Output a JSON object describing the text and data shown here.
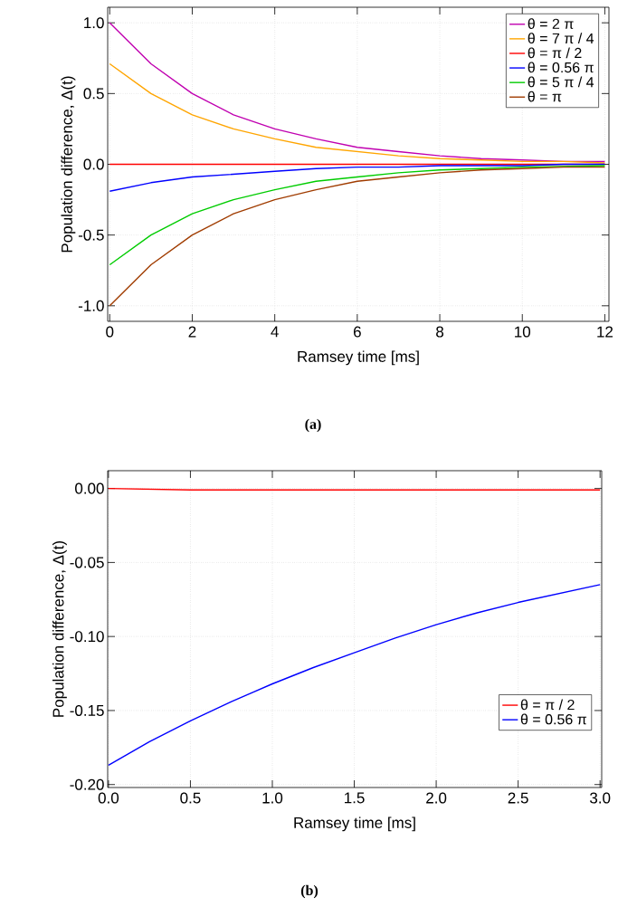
{
  "chart_data": [
    {
      "type": "line",
      "xlabel": "Ramsey time  [ms]",
      "ylabel": "Population difference, Δ(t)",
      "annotations": [
        "(a)"
      ],
      "x": [
        0,
        1,
        2,
        3,
        4,
        5,
        6,
        7,
        8,
        9,
        10,
        11,
        12
      ],
      "series": [
        {
          "name": "θ = 2 π",
          "color": "#c000b0",
          "values": [
            1.0,
            0.71,
            0.5,
            0.35,
            0.25,
            0.18,
            0.12,
            0.09,
            0.06,
            0.04,
            0.03,
            0.02,
            0.02
          ]
        },
        {
          "name": "θ = 7 π / 4",
          "color": "#ffa500",
          "values": [
            0.71,
            0.5,
            0.35,
            0.25,
            0.18,
            0.12,
            0.09,
            0.06,
            0.04,
            0.03,
            0.02,
            0.02,
            0.01
          ]
        },
        {
          "name": "θ = π / 2",
          "color": "#ff0000",
          "values": [
            0,
            0,
            0,
            0,
            0,
            0,
            0,
            0,
            0,
            0,
            0,
            0,
            0
          ]
        },
        {
          "name": "θ = 0.56 π",
          "color": "#0000ff",
          "values": [
            -0.19,
            -0.13,
            -0.09,
            -0.07,
            -0.05,
            -0.03,
            -0.02,
            -0.02,
            -0.01,
            -0.01,
            -0.01,
            0,
            0
          ]
        },
        {
          "name": "θ = 5 π / 4",
          "color": "#00cc00",
          "values": [
            -0.71,
            -0.5,
            -0.35,
            -0.25,
            -0.18,
            -0.12,
            -0.09,
            -0.06,
            -0.04,
            -0.03,
            -0.02,
            null,
            -0.01
          ]
        },
        {
          "name": "θ = π",
          "color": "#a03c00",
          "values": [
            -1.0,
            -0.71,
            -0.5,
            -0.35,
            -0.25,
            -0.18,
            -0.12,
            -0.09,
            -0.06,
            -0.04,
            -0.03,
            -0.02,
            -0.02
          ]
        }
      ],
      "xlim": [
        -0.05,
        12.1
      ],
      "ylim": [
        -1.11,
        1.11
      ],
      "xticks": [
        0,
        2,
        4,
        6,
        8,
        10,
        12
      ],
      "yticks": [
        {
          "value": -1,
          "label": "-1.0"
        },
        {
          "value": -0.5,
          "label": "-0.5"
        },
        {
          "value": 0,
          "label": "0.0"
        },
        {
          "value": 0.5,
          "label": "0.5"
        },
        {
          "value": 1,
          "label": "1.0"
        }
      ],
      "grid": true,
      "legend": "top right",
      "marker": "none",
      "line_style": "solid"
    },
    {
      "type": "line",
      "xlabel": "Ramsey time  [ms]",
      "ylabel": "Population difference, Δ(t)",
      "annotations": [
        "(b)"
      ],
      "x": [
        0,
        0.25,
        0.5,
        0.75,
        1.0,
        1.25,
        1.5,
        1.75,
        2.0,
        2.25,
        2.5,
        2.75,
        3.0
      ],
      "series": [
        {
          "name": "θ = π / 2",
          "color": "#ff0000",
          "values": [
            0,
            -0.0005,
            -0.001,
            -0.001,
            -0.001,
            -0.001,
            -0.001,
            -0.001,
            -0.001,
            -0.001,
            -0.001,
            -0.001,
            -0.001
          ]
        },
        {
          "name": "θ = 0.56 π",
          "color": "#0000ff",
          "values": [
            -0.187,
            -0.171,
            -0.157,
            -0.144,
            -0.132,
            -0.121,
            -0.111,
            -0.101,
            -0.092,
            -0.084,
            -0.077,
            -0.071,
            -0.065
          ]
        }
      ],
      "xlim": [
        -0.005,
        3.01
      ],
      "ylim": [
        -0.202,
        0.012
      ],
      "xticks": [
        {
          "value": 0,
          "label": "0.0"
        },
        {
          "value": 0.5,
          "label": "0.5"
        },
        {
          "value": 1,
          "label": "1.0"
        },
        {
          "value": 1.5,
          "label": "1.5"
        },
        {
          "value": 2,
          "label": "2.0"
        },
        {
          "value": 2.5,
          "label": "2.5"
        },
        {
          "value": 3,
          "label": "3.0"
        }
      ],
      "yticks": [
        {
          "value": -0.2,
          "label": "-0.20"
        },
        {
          "value": -0.15,
          "label": "-0.15"
        },
        {
          "value": -0.1,
          "label": "-0.10"
        },
        {
          "value": -0.05,
          "label": "-0.05"
        },
        {
          "value": 0,
          "label": "0.00"
        }
      ],
      "grid": true,
      "legend": "bottom right",
      "marker": "none",
      "line_style": "solid"
    }
  ]
}
